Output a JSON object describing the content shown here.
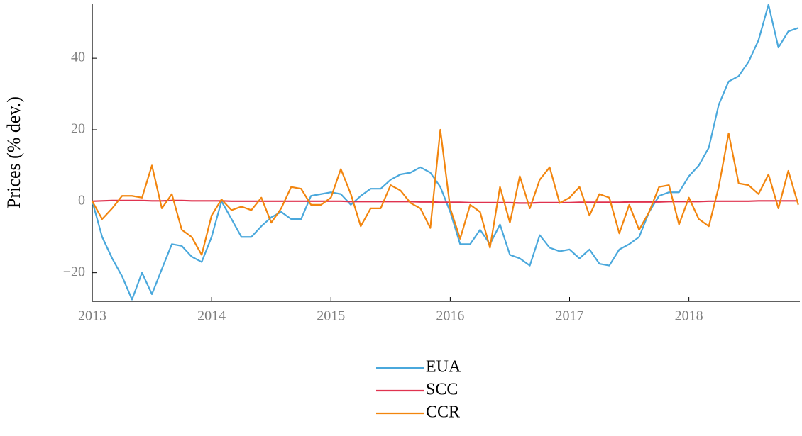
{
  "chart_data": {
    "type": "line",
    "y_label": "Prices (% dev.)",
    "x": [
      2013,
      2013.083,
      2013.167,
      2013.25,
      2013.333,
      2013.417,
      2013.5,
      2013.583,
      2013.667,
      2013.75,
      2013.833,
      2013.917,
      2014,
      2014.083,
      2014.167,
      2014.25,
      2014.333,
      2014.417,
      2014.5,
      2014.583,
      2014.667,
      2014.75,
      2014.833,
      2014.917,
      2015,
      2015.083,
      2015.167,
      2015.25,
      2015.333,
      2015.417,
      2015.5,
      2015.583,
      2015.667,
      2015.75,
      2015.833,
      2015.917,
      2016,
      2016.083,
      2016.167,
      2016.25,
      2016.333,
      2016.417,
      2016.5,
      2016.583,
      2016.667,
      2016.75,
      2016.833,
      2016.917,
      2017,
      2017.083,
      2017.167,
      2017.25,
      2017.333,
      2017.417,
      2017.5,
      2017.583,
      2017.667,
      2017.75,
      2017.833,
      2017.917,
      2018,
      2018.083,
      2018.167,
      2018.25,
      2018.333,
      2018.417,
      2018.5,
      2018.583,
      2018.667,
      2018.75,
      2018.833,
      2018.917
    ],
    "series": [
      {
        "name": "EUA",
        "color": "#4aa8dc",
        "values": [
          0,
          -10,
          -16,
          -21,
          -27.5,
          -20,
          -26,
          -19,
          -12,
          -12.5,
          -15.5,
          -17,
          -10,
          0,
          -5,
          -10,
          -10,
          -7,
          -4.5,
          -3,
          -5,
          -5,
          1.5,
          2,
          2.5,
          2,
          -1,
          1.5,
          3.5,
          3.5,
          6,
          7.5,
          8,
          9.5,
          8,
          4,
          -3,
          -12,
          -12,
          -8,
          -12,
          -6.5,
          -15,
          -16,
          -18,
          -9.5,
          -13,
          -14,
          -13.5,
          -16,
          -13.5,
          -17.5,
          -18,
          -13.5,
          -12,
          -10,
          -3,
          1.5,
          2.5,
          2.5,
          7,
          10,
          15,
          27,
          33.5,
          35,
          39,
          45,
          55,
          43,
          47.5,
          48.5
        ]
      },
      {
        "name": "SCC",
        "color": "#e0334f",
        "values": [
          0,
          0.1,
          0.2,
          0.2,
          0.2,
          0.2,
          0.1,
          0.1,
          0.2,
          0.2,
          0.1,
          0.1,
          0.1,
          0.1,
          0,
          0,
          0,
          0,
          0,
          0,
          0,
          0,
          0,
          0,
          0,
          0,
          -0.1,
          -0.1,
          -0.1,
          -0.1,
          -0.1,
          -0.1,
          -0.1,
          -0.2,
          -0.2,
          -0.3,
          -0.3,
          -0.3,
          -0.4,
          -0.4,
          -0.4,
          -0.4,
          -0.4,
          -0.5,
          -0.5,
          -0.4,
          -0.4,
          -0.4,
          -0.4,
          -0.3,
          -0.3,
          -0.3,
          -0.3,
          -0.3,
          -0.2,
          -0.2,
          -0.2,
          -0.2,
          -0.1,
          -0.1,
          -0.1,
          -0.1,
          0,
          0,
          0,
          0,
          0,
          0.1,
          0.1,
          0.1,
          0.1,
          0.1
        ]
      },
      {
        "name": "CCR",
        "color": "#f2850e",
        "values": [
          0,
          -5,
          -2,
          1.5,
          1.5,
          1,
          10,
          -2,
          2,
          -8,
          -10,
          -15,
          -4,
          0.5,
          -2.5,
          -1.5,
          -2.5,
          1,
          -6,
          -2,
          4,
          3.5,
          -1,
          -1,
          1,
          9,
          2,
          -7,
          -2,
          -2,
          4.5,
          3,
          -0.5,
          -2,
          -7.5,
          20,
          -2,
          -10.5,
          -1,
          -3,
          -13,
          4,
          -6,
          7,
          -2,
          6,
          9.5,
          -0.5,
          1,
          4,
          -4,
          2,
          1,
          -9,
          -1,
          -8,
          -3,
          4,
          4.5,
          -6.5,
          1,
          -5,
          -7,
          4,
          19,
          5,
          4.5,
          2,
          7.5,
          -2,
          8.5,
          -1
        ]
      }
    ],
    "xlim": [
      2013,
      2018.93
    ],
    "xticks": [
      2013,
      2014,
      2015,
      2016,
      2017,
      2018
    ],
    "ylim": [
      -28,
      55.3
    ],
    "yticks": [
      {
        "value": -20,
        "label": "−20"
      },
      0,
      20,
      40
    ],
    "legend": "bottom"
  }
}
